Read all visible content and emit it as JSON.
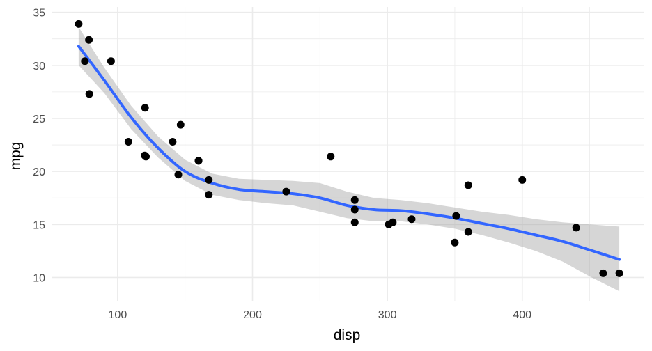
{
  "chart_data": {
    "type": "scatter",
    "title": "",
    "xlabel": "disp",
    "ylabel": "mpg",
    "xlim": [
      51,
      490
    ],
    "ylim": [
      7.8,
      35.5
    ],
    "x_ticks": [
      100,
      200,
      300,
      400
    ],
    "y_ticks": [
      10,
      15,
      20,
      25,
      30,
      35
    ],
    "grid": true,
    "legend": "none",
    "colors": {
      "point": "#000000",
      "smooth_line": "#3366ff",
      "ribbon": "#999999",
      "grid": "#ebebeb"
    },
    "points": [
      {
        "x": 71.1,
        "y": 33.9
      },
      {
        "x": 75.7,
        "y": 30.4
      },
      {
        "x": 78.7,
        "y": 32.4
      },
      {
        "x": 79.0,
        "y": 27.3
      },
      {
        "x": 95.1,
        "y": 30.4
      },
      {
        "x": 108.0,
        "y": 22.8
      },
      {
        "x": 120.1,
        "y": 21.5
      },
      {
        "x": 120.3,
        "y": 26.0
      },
      {
        "x": 121.0,
        "y": 21.4
      },
      {
        "x": 140.8,
        "y": 22.8
      },
      {
        "x": 145.0,
        "y": 19.7
      },
      {
        "x": 146.7,
        "y": 24.4
      },
      {
        "x": 160.0,
        "y": 21.0
      },
      {
        "x": 160.0,
        "y": 21.0
      },
      {
        "x": 167.6,
        "y": 19.2
      },
      {
        "x": 167.6,
        "y": 17.8
      },
      {
        "x": 225.0,
        "y": 18.1
      },
      {
        "x": 258.0,
        "y": 21.4
      },
      {
        "x": 275.8,
        "y": 16.4
      },
      {
        "x": 275.8,
        "y": 17.3
      },
      {
        "x": 275.8,
        "y": 15.2
      },
      {
        "x": 301.0,
        "y": 15.0
      },
      {
        "x": 304.0,
        "y": 15.2
      },
      {
        "x": 318.0,
        "y": 15.5
      },
      {
        "x": 350.0,
        "y": 13.3
      },
      {
        "x": 351.0,
        "y": 15.8
      },
      {
        "x": 360.0,
        "y": 18.7
      },
      {
        "x": 360.0,
        "y": 14.3
      },
      {
        "x": 400.0,
        "y": 19.2
      },
      {
        "x": 440.0,
        "y": 14.7
      },
      {
        "x": 460.0,
        "y": 10.4
      },
      {
        "x": 472.0,
        "y": 10.4
      }
    ],
    "smooth": [
      {
        "x": 71.1,
        "y": 31.8,
        "lo": 30.0,
        "hi": 33.6
      },
      {
        "x": 90,
        "y": 28.6,
        "lo": 27.4,
        "hi": 29.8
      },
      {
        "x": 110,
        "y": 25.1,
        "lo": 24.0,
        "hi": 26.2
      },
      {
        "x": 130,
        "y": 22.2,
        "lo": 21.3,
        "hi": 23.3
      },
      {
        "x": 150,
        "y": 20.0,
        "lo": 19.1,
        "hi": 21.1
      },
      {
        "x": 170,
        "y": 18.9,
        "lo": 17.8,
        "hi": 19.8
      },
      {
        "x": 190,
        "y": 18.3,
        "lo": 17.3,
        "hi": 19.3
      },
      {
        "x": 210,
        "y": 18.1,
        "lo": 17.0,
        "hi": 19.2
      },
      {
        "x": 230,
        "y": 17.9,
        "lo": 16.8,
        "hi": 19.1
      },
      {
        "x": 250,
        "y": 17.5,
        "lo": 16.2,
        "hi": 18.9
      },
      {
        "x": 270,
        "y": 16.8,
        "lo": 15.6,
        "hi": 18.1
      },
      {
        "x": 290,
        "y": 16.4,
        "lo": 15.3,
        "hi": 17.5
      },
      {
        "x": 310,
        "y": 16.3,
        "lo": 15.3,
        "hi": 17.3
      },
      {
        "x": 330,
        "y": 16.0,
        "lo": 15.0,
        "hi": 17.0
      },
      {
        "x": 350,
        "y": 15.6,
        "lo": 14.6,
        "hi": 16.6
      },
      {
        "x": 370,
        "y": 15.1,
        "lo": 14.0,
        "hi": 16.2
      },
      {
        "x": 390,
        "y": 14.6,
        "lo": 13.3,
        "hi": 15.9
      },
      {
        "x": 410,
        "y": 14.0,
        "lo": 12.5,
        "hi": 15.5
      },
      {
        "x": 430,
        "y": 13.4,
        "lo": 11.5,
        "hi": 15.2
      },
      {
        "x": 450,
        "y": 12.6,
        "lo": 10.1,
        "hi": 15.0
      },
      {
        "x": 472,
        "y": 11.7,
        "lo": 8.7,
        "hi": 14.8
      }
    ]
  }
}
